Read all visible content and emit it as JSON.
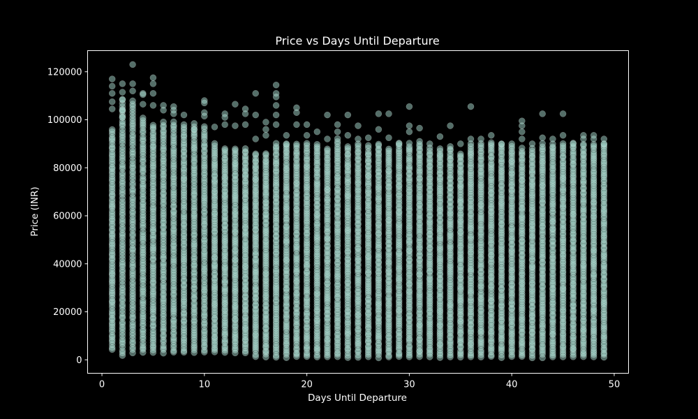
{
  "chart_data": {
    "type": "scatter",
    "title": "Price vs Days Until Departure",
    "xlabel": "Days Until Departure",
    "ylabel": "Price (INR)",
    "xlim": [
      -1.4,
      51.4
    ],
    "ylim": [
      -5600,
      128800
    ],
    "x_ticks": [
      0,
      10,
      20,
      30,
      40,
      50
    ],
    "y_ticks": [
      0,
      20000,
      40000,
      60000,
      80000,
      100000,
      120000
    ],
    "grid": false,
    "legend": "none",
    "point_color": "#a8dcd0",
    "point_opacity": 0.5,
    "background": "#000000",
    "series": [
      {
        "x_values": [
          1,
          2,
          3,
          4,
          5,
          6,
          7,
          8,
          9,
          10,
          11,
          12,
          13,
          14,
          15,
          16,
          17,
          18,
          19,
          20,
          21,
          22,
          23,
          24,
          25,
          26,
          27,
          28,
          29,
          30,
          31,
          32,
          33,
          34,
          35,
          36,
          37,
          38,
          39,
          40,
          41,
          42,
          43,
          44,
          45,
          46,
          47,
          48,
          49
        ],
        "y_min": [
          4200,
          1600,
          3000,
          3000,
          3000,
          3000,
          3000,
          3000,
          3000,
          3000,
          3000,
          3000,
          3000,
          3000,
          1500,
          1200,
          1100,
          1100,
          1100,
          1100,
          1100,
          1100,
          1100,
          1100,
          1100,
          1100,
          1100,
          1100,
          1100,
          1100,
          1100,
          1100,
          1100,
          1100,
          1100,
          1100,
          1100,
          1100,
          1100,
          1100,
          1100,
          1100,
          1100,
          1100,
          1100,
          1100,
          1100,
          1100,
          1100
        ],
        "y_dense_top": [
          96000,
          108000,
          108000,
          101000,
          98000,
          99000,
          99000,
          97000,
          97000,
          97000,
          90000,
          88000,
          88000,
          88000,
          86000,
          86000,
          90000,
          90000,
          90000,
          90000,
          90000,
          88000,
          92000,
          89000,
          90000,
          89000,
          90000,
          88000,
          90000,
          90000,
          90000,
          88000,
          88000,
          89000,
          86000,
          90000,
          90000,
          90000,
          90000,
          89000,
          88000,
          88000,
          90000,
          90000,
          90000,
          90000,
          90000,
          90000,
          90000
        ],
        "outliers": [
          [
            1,
            117000
          ],
          [
            1,
            114000
          ],
          [
            1,
            111000
          ],
          [
            1,
            107500
          ],
          [
            1,
            104500
          ],
          [
            2,
            115000
          ],
          [
            2,
            111500
          ],
          [
            2,
            108500
          ],
          [
            2,
            104000
          ],
          [
            2,
            101000
          ],
          [
            3,
            123000
          ],
          [
            3,
            115000
          ],
          [
            3,
            112000
          ],
          [
            4,
            111000
          ],
          [
            4,
            110500
          ],
          [
            4,
            106500
          ],
          [
            5,
            117500
          ],
          [
            5,
            115000
          ],
          [
            5,
            111000
          ],
          [
            5,
            106000
          ],
          [
            6,
            106000
          ],
          [
            6,
            104000
          ],
          [
            7,
            105500
          ],
          [
            7,
            104000
          ],
          [
            7,
            102500
          ],
          [
            8,
            102000
          ],
          [
            8,
            98000
          ],
          [
            9,
            98500
          ],
          [
            9,
            96000
          ],
          [
            10,
            108000
          ],
          [
            10,
            107000
          ],
          [
            10,
            103000
          ],
          [
            10,
            101500
          ],
          [
            11,
            97000
          ],
          [
            12,
            102500
          ],
          [
            12,
            101000
          ],
          [
            12,
            98000
          ],
          [
            13,
            106500
          ],
          [
            13,
            97500
          ],
          [
            14,
            104500
          ],
          [
            14,
            102500
          ],
          [
            14,
            98000
          ],
          [
            15,
            111000
          ],
          [
            15,
            102000
          ],
          [
            15,
            92000
          ],
          [
            16,
            99000
          ],
          [
            16,
            96000
          ],
          [
            16,
            93500
          ],
          [
            17,
            114500
          ],
          [
            17,
            111000
          ],
          [
            17,
            109500
          ],
          [
            17,
            106000
          ],
          [
            17,
            102000
          ],
          [
            17,
            98000
          ],
          [
            18,
            93500
          ],
          [
            18,
            90000
          ],
          [
            19,
            105000
          ],
          [
            19,
            103000
          ],
          [
            19,
            98000
          ],
          [
            20,
            98000
          ],
          [
            20,
            93500
          ],
          [
            21,
            95000
          ],
          [
            22,
            102000
          ],
          [
            22,
            92000
          ],
          [
            23,
            98000
          ],
          [
            23,
            95000
          ],
          [
            24,
            102000
          ],
          [
            24,
            93500
          ],
          [
            25,
            97500
          ],
          [
            25,
            92000
          ],
          [
            26,
            92500
          ],
          [
            27,
            102500
          ],
          [
            27,
            96000
          ],
          [
            28,
            102500
          ],
          [
            28,
            92500
          ],
          [
            29,
            90000
          ],
          [
            30,
            105500
          ],
          [
            30,
            97500
          ],
          [
            30,
            95000
          ],
          [
            31,
            96500
          ],
          [
            31,
            91000
          ],
          [
            32,
            90000
          ],
          [
            33,
            93000
          ],
          [
            34,
            97500
          ],
          [
            35,
            90000
          ],
          [
            36,
            105500
          ],
          [
            36,
            92000
          ],
          [
            37,
            92000
          ],
          [
            38,
            93500
          ],
          [
            38,
            90500
          ],
          [
            39,
            90000
          ],
          [
            40,
            90000
          ],
          [
            41,
            99500
          ],
          [
            41,
            97500
          ],
          [
            41,
            95000
          ],
          [
            41,
            92000
          ],
          [
            42,
            90000
          ],
          [
            43,
            102500
          ],
          [
            43,
            92500
          ],
          [
            44,
            92000
          ],
          [
            45,
            102500
          ],
          [
            45,
            93500
          ],
          [
            46,
            90000
          ],
          [
            47,
            93500
          ],
          [
            47,
            92000
          ],
          [
            48,
            93500
          ],
          [
            48,
            92000
          ],
          [
            49,
            92000
          ],
          [
            49,
            90000
          ]
        ]
      }
    ]
  }
}
